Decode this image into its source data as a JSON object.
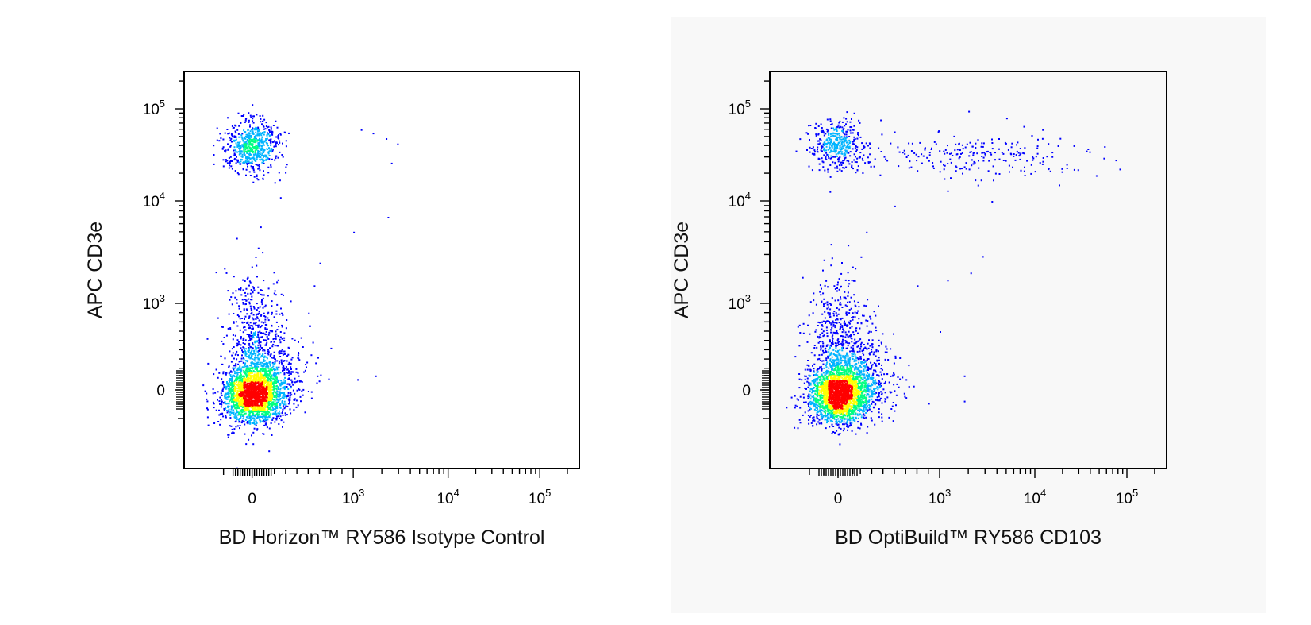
{
  "colors": {
    "density_low": "#0000ff",
    "density_mid_low": "#00b4ff",
    "density_mid": "#00ff80",
    "density_mid_high": "#ffff00",
    "density_high": "#ff0000",
    "frame": "#000000"
  },
  "chart_data": [
    {
      "type": "scatter",
      "title": "",
      "xlabel": "BD Horizon™ RY586 Isotype Control",
      "ylabel": "APC CD3e",
      "x_scale": "biexponential",
      "y_scale": "biexponential",
      "xlim": [
        -150,
        200000
      ],
      "ylim": [
        -400,
        250000
      ],
      "x_ticks": [
        {
          "value": 0,
          "label": "0",
          "base": "",
          "exp": ""
        },
        {
          "value": 1000,
          "label": "",
          "base": "10",
          "exp": "3"
        },
        {
          "value": 10000,
          "label": "",
          "base": "10",
          "exp": "4"
        },
        {
          "value": 100000,
          "label": "",
          "base": "10",
          "exp": "5"
        }
      ],
      "y_ticks": [
        {
          "value": 0,
          "label": "0",
          "base": "",
          "exp": ""
        },
        {
          "value": 1000,
          "label": "",
          "base": "10",
          "exp": "3"
        },
        {
          "value": 10000,
          "label": "",
          "base": "10",
          "exp": "4"
        },
        {
          "value": 100000,
          "label": "",
          "base": "10",
          "exp": "5"
        }
      ],
      "populations": [
        {
          "x_center": 0,
          "y_center": 0,
          "count": 2600
        },
        {
          "x_center": 0,
          "y_center": 40000,
          "count": 650
        },
        {
          "x_center": 0,
          "y_center": 600,
          "count": 500
        }
      ],
      "sparse_events": [
        {
          "x": 1200,
          "y": 60000
        },
        {
          "x": 1600,
          "y": 55000
        },
        {
          "x": 2200,
          "y": 48000
        },
        {
          "x": 2900,
          "y": 42000
        },
        {
          "x": 2500,
          "y": 26000
        },
        {
          "x": 2300,
          "y": 7000
        },
        {
          "x": 1000,
          "y": 5000
        },
        {
          "x": 700,
          "y": 2500
        },
        {
          "x": 650,
          "y": 1500
        },
        {
          "x": 600,
          "y": 900
        },
        {
          "x": 350,
          "y": 700
        },
        {
          "x": 1700,
          "y": 200
        },
        {
          "x": 1100,
          "y": 150
        },
        {
          "x": 400,
          "y": 40000
        },
        {
          "x": 300,
          "y": 16000
        },
        {
          "x": 350,
          "y": 11000
        }
      ]
    },
    {
      "type": "scatter",
      "title": "",
      "xlabel": "BD OptiBuild™ RY586 CD103",
      "ylabel": "APC CD3e",
      "x_scale": "biexponential",
      "y_scale": "biexponential",
      "xlim": [
        -150,
        200000
      ],
      "ylim": [
        -400,
        250000
      ],
      "x_ticks": [
        {
          "value": 0,
          "label": "0",
          "base": "",
          "exp": ""
        },
        {
          "value": 1000,
          "label": "",
          "base": "10",
          "exp": "3"
        },
        {
          "value": 10000,
          "label": "",
          "base": "10",
          "exp": "4"
        },
        {
          "value": 100000,
          "label": "",
          "base": "10",
          "exp": "5"
        }
      ],
      "y_ticks": [
        {
          "value": 0,
          "label": "0",
          "base": "",
          "exp": ""
        },
        {
          "value": 1000,
          "label": "",
          "base": "10",
          "exp": "3"
        },
        {
          "value": 10000,
          "label": "",
          "base": "10",
          "exp": "4"
        },
        {
          "value": 100000,
          "label": "",
          "base": "10",
          "exp": "5"
        }
      ],
      "populations": [
        {
          "x_center": 0,
          "y_center": 0,
          "count": 2600
        },
        {
          "x_center": 0,
          "y_center": 40000,
          "count": 420
        },
        {
          "x_center": 2500,
          "y_center": 32000,
          "count": 230
        },
        {
          "x_center": 0,
          "y_center": 600,
          "count": 500
        }
      ],
      "sparse_events": [
        {
          "x": 75000,
          "y": 28000
        },
        {
          "x": 22000,
          "y": 23000
        },
        {
          "x": 12000,
          "y": 60000
        },
        {
          "x": 5000,
          "y": 80000
        },
        {
          "x": 2000,
          "y": 95000
        },
        {
          "x": 3500,
          "y": 10000
        },
        {
          "x": 2800,
          "y": 2900
        },
        {
          "x": 2100,
          "y": 2000
        },
        {
          "x": 1200,
          "y": 1700
        },
        {
          "x": 1000,
          "y": 700
        },
        {
          "x": 800,
          "y": 1500
        },
        {
          "x": 1800,
          "y": -150
        },
        {
          "x": 700,
          "y": -100
        },
        {
          "x": 900,
          "y": -180
        },
        {
          "x": 1800,
          "y": 200
        },
        {
          "x": 700,
          "y": 150
        },
        {
          "x": 350,
          "y": 5000
        },
        {
          "x": 600,
          "y": 9000
        },
        {
          "x": 1200,
          "y": 13000
        },
        {
          "x": 2500,
          "y": 15000
        }
      ]
    }
  ]
}
